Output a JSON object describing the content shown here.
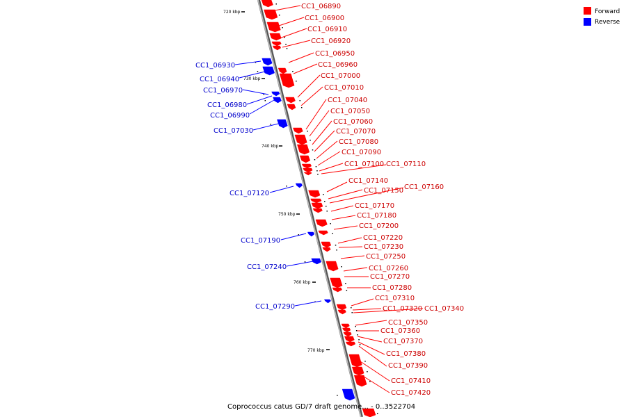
{
  "caption": "Coprococcus catus GD/7 draft genome... - 0..3522704",
  "legend": [
    {
      "label": "Forward",
      "color": "#ff0000"
    },
    {
      "label": "Reverse",
      "color": "#0000ff"
    }
  ],
  "colors": {
    "forward": "#ff0000",
    "reverse": "#0000ff",
    "backbone": "#888888"
  },
  "ticks": [
    "720 kbp",
    "730 kbp",
    "740 kbp",
    "750 kbp",
    "760 kbp",
    "770 kbp"
  ],
  "forward_genes": [
    "CC1_06890",
    "CC1_06900",
    "CC1_06910",
    "CC1_06920",
    "CC1_06950",
    "CC1_06960",
    "CC1_07000",
    "CC1_07010",
    "CC1_07040",
    "CC1_07050",
    "CC1_07060",
    "CC1_07070",
    "CC1_07080",
    "CC1_07090",
    "CC1_07100",
    "CC1_07110",
    "CC1_07140",
    "CC1_07150",
    "CC1_07160",
    "CC1_07170",
    "CC1_07180",
    "CC1_07200",
    "CC1_07220",
    "CC1_07230",
    "CC1_07250",
    "CC1_07260",
    "CC1_07270",
    "CC1_07280",
    "CC1_07310",
    "CC1_07320",
    "CC1_07340",
    "CC1_07350",
    "CC1_07360",
    "CC1_07370",
    "CC1_07380",
    "CC1_07390",
    "CC1_07410",
    "CC1_07420"
  ],
  "reverse_genes": [
    "CC1_06930",
    "CC1_06940",
    "CC1_06970",
    "CC1_06980",
    "CC1_06990",
    "CC1_07030",
    "CC1_07120",
    "CC1_07190",
    "CC1_07240",
    "CC1_07290"
  ]
}
